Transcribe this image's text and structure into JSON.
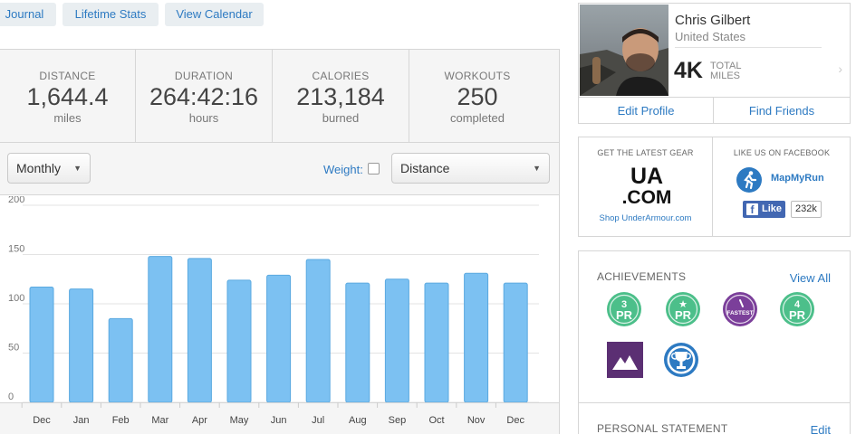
{
  "tabs": [
    {
      "label": "Journal"
    },
    {
      "label": "Lifetime Stats"
    },
    {
      "label": "View Calendar"
    }
  ],
  "stats": [
    {
      "label": "DISTANCE",
      "value": "1,644.4",
      "sub": "miles"
    },
    {
      "label": "DURATION",
      "value": "264:42:16",
      "sub": "hours"
    },
    {
      "label": "CALORIES",
      "value": "213,184",
      "sub": "burned"
    },
    {
      "label": "WORKOUTS",
      "value": "250",
      "sub": "completed"
    }
  ],
  "controls": {
    "period_select": "Monthly",
    "weight_label": "Weight:",
    "weight_checked": false,
    "metric_select": "Distance"
  },
  "chart_data": {
    "type": "bar",
    "categories": [
      "Dec",
      "Jan",
      "Feb",
      "Mar",
      "Apr",
      "May",
      "Jun",
      "Jul",
      "Aug",
      "Sep",
      "Oct",
      "Nov",
      "Dec"
    ],
    "values": [
      117,
      115,
      85,
      148,
      146,
      124,
      129,
      145,
      121,
      125,
      121,
      131,
      121
    ],
    "yticks": [
      0,
      50,
      100,
      150,
      200
    ],
    "ylim": [
      0,
      200
    ],
    "grid": true,
    "bar_color": "#7cc1f2",
    "bar_stroke": "#5aa9e0"
  },
  "profile": {
    "name": "Chris Gilbert",
    "country": "United States",
    "miles_value": "4K",
    "miles_unit_1": "TOTAL",
    "miles_unit_2": "MILES",
    "edit_profile": "Edit Profile",
    "find_friends": "Find Friends"
  },
  "gear": {
    "heading": "GET THE LATEST GEAR",
    "logo_line1": "UA",
    "logo_line2": ".COM",
    "link": "Shop UnderArmour.com"
  },
  "facebook": {
    "heading": "LIKE US ON FACEBOOK",
    "app_name": "MapMyRun",
    "like_label": "Like",
    "like_count": "232k"
  },
  "achievements": {
    "heading": "ACHIEVEMENTS",
    "view_all": "View All",
    "badges": [
      {
        "icon": "3-pr-badge-icon",
        "top": "3",
        "bottom": "PR",
        "color": "#4cbf8a"
      },
      {
        "icon": "star-pr-badge-icon",
        "top": "★",
        "bottom": "PR",
        "color": "#4cbf8a"
      },
      {
        "icon": "fastest-badge-icon",
        "top": "",
        "bottom": "FASTEST",
        "color": "#7b3f9a"
      },
      {
        "icon": "4-pr-badge-icon",
        "top": "4",
        "bottom": "PR",
        "color": "#4cbf8a"
      },
      {
        "icon": "mountain-badge-icon",
        "color": "#5b2f73"
      },
      {
        "icon": "trophy-badge-icon",
        "color": "#2d7ac2"
      }
    ]
  },
  "personal_statement": {
    "heading": "PERSONAL STATEMENT",
    "edit": "Edit"
  }
}
